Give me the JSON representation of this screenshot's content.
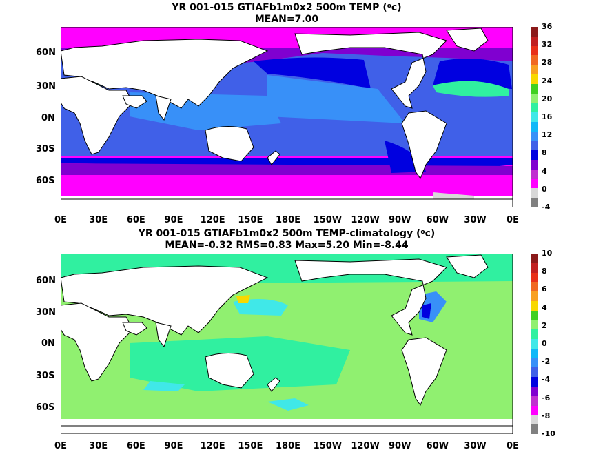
{
  "panels": [
    {
      "title_line1": "YR 001-015 GTIAFb1m0x2 500m TEMP (",
      "title_unit_sup": "o",
      "title_unit": "c)",
      "title_line2": "MEAN=7.00",
      "lat_labels": [
        "60N",
        "30N",
        "0N",
        "30S",
        "60S"
      ],
      "lon_labels": [
        "0E",
        "30E",
        "60E",
        "90E",
        "120E",
        "150E",
        "180E",
        "150W",
        "120W",
        "90W",
        "60W",
        "30W",
        "0E"
      ],
      "colorbar": {
        "labels": [
          "36",
          "32",
          "28",
          "24",
          "20",
          "16",
          "12",
          "8",
          "4",
          "0",
          "-4"
        ],
        "colors": [
          "#8b1a1a",
          "#c02020",
          "#e83018",
          "#f06820",
          "#f8a020",
          "#f8d800",
          "#40d020",
          "#90f070",
          "#30f0a0",
          "#40e8e8",
          "#10b8f8",
          "#3890f8",
          "#4060e8",
          "#0000e0",
          "#8000d0",
          "#c030d0",
          "#ff00ff",
          "#d8d8d8",
          "#808080"
        ]
      }
    },
    {
      "title_line1": "YR 001-015 GTIAFb1m0x2 500m TEMP-climatology (",
      "title_unit_sup": "o",
      "title_unit": "c)",
      "title_line2": "MEAN=-0.32   RMS=0.83   Max=5.20   Min=-8.44",
      "lat_labels": [
        "60N",
        "30N",
        "0N",
        "30S",
        "60S"
      ],
      "lon_labels": [
        "0E",
        "30E",
        "60E",
        "90E",
        "120E",
        "150E",
        "180E",
        "150W",
        "120W",
        "90W",
        "60W",
        "30W",
        "0E"
      ],
      "colorbar": {
        "labels": [
          "10",
          "8",
          "6",
          "4",
          "2",
          "0",
          "-2",
          "-4",
          "-6",
          "-8",
          "-10"
        ],
        "colors": [
          "#8b1a1a",
          "#c02020",
          "#e83018",
          "#f06820",
          "#f8a020",
          "#f8d800",
          "#40d020",
          "#90f070",
          "#30f0a0",
          "#40e8e8",
          "#10b8f8",
          "#3890f8",
          "#4060e8",
          "#0000e0",
          "#8000d0",
          "#c030d0",
          "#ff00ff",
          "#d8d8d8",
          "#808080"
        ]
      }
    }
  ]
}
